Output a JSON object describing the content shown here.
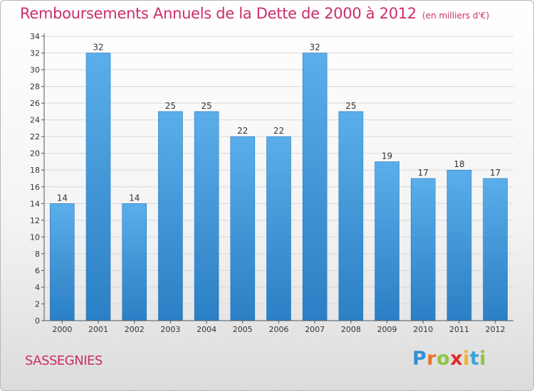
{
  "title": "Remboursements Annuels de la Dette de 2000 à 2012",
  "title_unit": "(en milliers d'€)",
  "commune": "SASSEGNIES",
  "logo": {
    "letters": [
      "P",
      "r",
      "o",
      "x",
      "i",
      "t",
      "i"
    ],
    "colors": [
      "#2f8fd8",
      "#e8732b",
      "#8cc63f",
      "#e02a2a",
      "#f0b323",
      "#3aa3d9",
      "#8cc63f"
    ]
  },
  "colors": {
    "title": "#cc2d6b",
    "bar_top": "#5aaeea",
    "bar_bottom": "#2b7fc4",
    "axis": "#555555",
    "grid": "#d8d8d8"
  },
  "chart_data": {
    "type": "bar",
    "categories": [
      "2000",
      "2001",
      "2002",
      "2003",
      "2004",
      "2005",
      "2006",
      "2007",
      "2008",
      "2009",
      "2010",
      "2011",
      "2012"
    ],
    "values": [
      14,
      32,
      14,
      25,
      25,
      22,
      22,
      32,
      25,
      19,
      17,
      18,
      17
    ],
    "ylim": [
      0,
      34
    ],
    "yticks": [
      0,
      2,
      4,
      6,
      8,
      10,
      12,
      14,
      16,
      18,
      20,
      22,
      24,
      26,
      28,
      30,
      32,
      34
    ],
    "grid": true,
    "data_labels": true,
    "legend": "none"
  }
}
